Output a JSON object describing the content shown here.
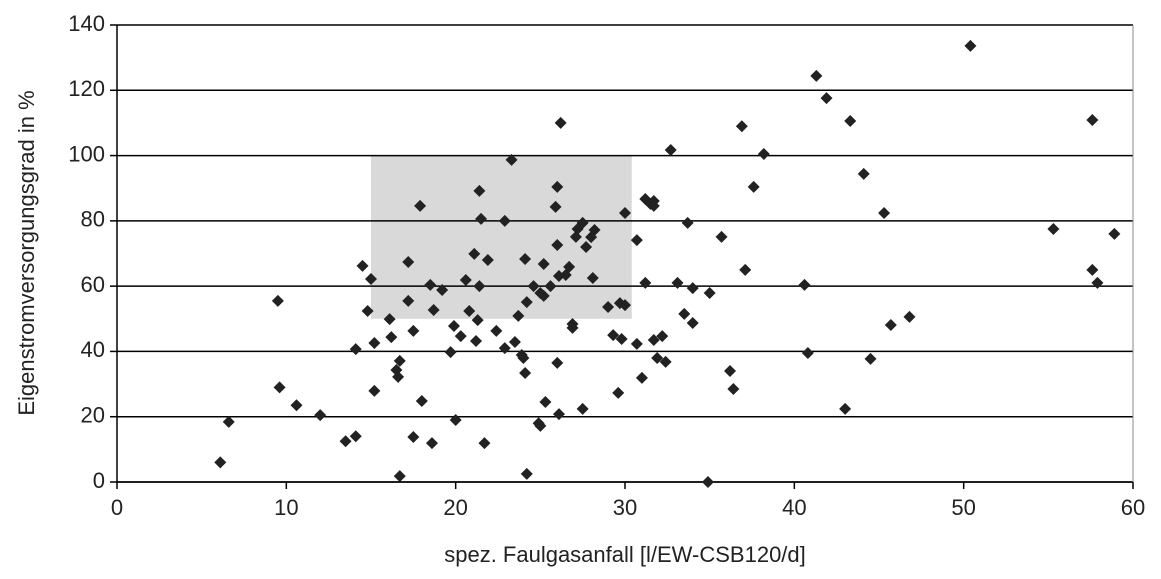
{
  "chart_data": {
    "type": "scatter",
    "xlabel": "spez. Faulgasanfall [l/EW-CSB120/d]",
    "ylabel": "Eigenstromversorgungsgrad in %",
    "xlim": [
      0,
      60
    ],
    "ylim": [
      0,
      140
    ],
    "xticks": [
      0,
      10,
      20,
      30,
      40,
      50,
      60
    ],
    "yticks": [
      0,
      20,
      40,
      60,
      80,
      100,
      120,
      140
    ],
    "grid": true,
    "color": "#222222",
    "highlight": {
      "xlim": [
        15,
        30.4
      ],
      "ylim": [
        50,
        100
      ],
      "color": "#d9d9d9"
    },
    "x": [
      6.1,
      6.6,
      9.5,
      9.6,
      10.6,
      12,
      13.5,
      14.1,
      14.1,
      14.5,
      15,
      14.8,
      15.2,
      15.2,
      16.1,
      16.2,
      16.5,
      16.6,
      16.7,
      16.7,
      17.2,
      17.2,
      17.5,
      17.5,
      17.9,
      18,
      18.5,
      18.6,
      18.7,
      19.2,
      19.7,
      20,
      19.9,
      20.3,
      20.6,
      20.8,
      21.1,
      21.2,
      21.3,
      21.4,
      21.4,
      21.5,
      21.7,
      21.9,
      22.4,
      22.9,
      22.9,
      23.3,
      23.5,
      23.7,
      23.9,
      24,
      24.1,
      24.1,
      24.2,
      24.2,
      24.6,
      24.9,
      25,
      25,
      25.2,
      25.2,
      25.3,
      25.6,
      26,
      25.9,
      26,
      26,
      26.1,
      26.1,
      26.2,
      26.5,
      26.7,
      26.9,
      26.9,
      27.1,
      27.2,
      27.5,
      27.5,
      27.7,
      28,
      28.1,
      28.2,
      29,
      29.3,
      29.6,
      29.7,
      29.8,
      30,
      30,
      30.7,
      30.7,
      31,
      31.2,
      31.2,
      31.5,
      31.7,
      31.7,
      31.7,
      31.9,
      32.2,
      32.4,
      32.7,
      33.1,
      33.5,
      33.7,
      34,
      34,
      34.9,
      35,
      35.7,
      36.2,
      36.4,
      36.9,
      37.1,
      37.6,
      38.2,
      40.6,
      40.8,
      41.3,
      41.9,
      43,
      43.3,
      44.1,
      44.5,
      45.3,
      45.7,
      46.8,
      50.4,
      55.3,
      57.6,
      57.6,
      57.9,
      58.9
    ],
    "y": [
      6,
      18.4,
      55.5,
      29,
      23.5,
      20.5,
      12.5,
      14,
      40.7,
      66.2,
      62.2,
      52.4,
      42.6,
      27.9,
      49.9,
      44.4,
      34.3,
      32.2,
      37.1,
      1.8,
      67.4,
      55.5,
      46.3,
      13.8,
      84.6,
      24.8,
      60.4,
      11.9,
      52.7,
      58.8,
      39.8,
      19,
      47.8,
      44.7,
      61.9,
      52.4,
      69.9,
      43.2,
      49.6,
      60,
      89.2,
      80.6,
      11.9,
      68,
      46.3,
      41,
      80,
      98.7,
      42.9,
      50.9,
      38.9,
      38,
      68.3,
      33.4,
      55.1,
      2.5,
      60,
      18,
      17.2,
      57.9,
      66.8,
      57,
      24.5,
      60,
      36.5,
      84.3,
      72.6,
      90.4,
      63.1,
      20.8,
      110,
      63.4,
      65.9,
      47.2,
      48.4,
      75.1,
      77.5,
      79.4,
      22.4,
      72,
      75,
      62.5,
      77.2,
      53.6,
      45,
      27.3,
      54.8,
      43.8,
      54.2,
      82.4,
      74.1,
      42.3,
      31.9,
      61,
      86.7,
      85.2,
      86.1,
      84.6,
      43.5,
      38,
      44.7,
      36.8,
      101.7,
      61,
      51.5,
      79.4,
      59.4,
      48.7,
      0,
      57.9,
      75.1,
      34,
      28.5,
      109,
      65,
      90.4,
      100.5,
      60.4,
      39.5,
      124.4,
      117.6,
      22.4,
      110.6,
      94.4,
      37.7,
      82.4,
      48.1,
      50.6,
      133.6,
      77.5,
      110.9,
      65,
      61,
      76
    ]
  }
}
